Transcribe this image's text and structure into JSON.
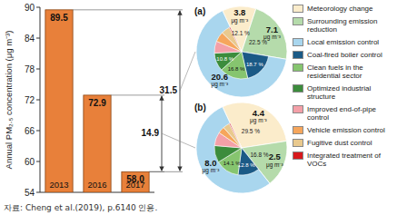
{
  "chart_data": [
    {
      "type": "bar",
      "categories": [
        "2013",
        "2016",
        "2017"
      ],
      "values": [
        89.5,
        72.9,
        58.0
      ],
      "value_labels": [
        "89.5",
        "72.9",
        "58.0"
      ],
      "color": "#e8803a",
      "ylim": [
        54,
        90
      ],
      "yticks": [
        54,
        60,
        66,
        72,
        78,
        84,
        90
      ],
      "y_label": "Annual PM₂.₅ concentration (μg m⁻³)",
      "data_labels": true,
      "annotations": [
        {
          "text": "31.5",
          "from": "2013",
          "to": "2017"
        },
        {
          "text": "14.9",
          "from": "2016",
          "to": "2017"
        }
      ]
    },
    {
      "type": "pie",
      "title": "(a)",
      "values": [
        3.8,
        7.1,
        20.6
      ],
      "value_labels": [
        "3.8 μg m⁻³",
        "7.1 μg m⁻³",
        "20.6 μg m⁻³"
      ],
      "shares": [
        12.1,
        22.5,
        null
      ],
      "share_labels": [
        "12.1 %",
        "22.5 %",
        null
      ],
      "sub_values": [
        18.7,
        16.8,
        10.8,
        7.1,
        6.0,
        5.1,
        0.6
      ],
      "sub_value_labels": [
        "18.7 %",
        "16.8 %",
        "10.8 %",
        null,
        null,
        null,
        null
      ],
      "data_labels": true
    },
    {
      "type": "pie",
      "title": "(b)",
      "values": [
        4.4,
        2.5,
        8.0
      ],
      "value_labels": [
        "4.4 μg m⁻³",
        "2.5 μg m⁻³",
        "8.0 μg m⁻³"
      ],
      "shares": [
        29.5,
        16.8,
        null
      ],
      "share_labels": [
        "29.5 %",
        "16.8 %",
        null
      ],
      "sub_values": [
        12.8,
        14.1,
        10.1,
        8.1,
        4.0,
        4.0,
        0.6
      ],
      "sub_value_labels": [
        "12.8 %",
        "14.1 %",
        null,
        null,
        null,
        null,
        null
      ],
      "data_labels": true
    }
  ],
  "legend_entries": [
    {
      "name": "Meteorology change",
      "color": "#fbeccb"
    },
    {
      "name": "Surrounding emission reduction",
      "color": "#b5dbab"
    },
    {
      "name": "Local emission control",
      "color": "#a9d6ee"
    },
    {
      "name": "Coal-fired boiler control",
      "color": "#1b5a86"
    },
    {
      "name": "Clean fuels in the residential sector",
      "color": "#86c56f"
    },
    {
      "name": "Optimized industrial structure",
      "color": "#3c8c3c"
    },
    {
      "name": "Improved end-of-pipe control",
      "color": "#f4a0a8"
    },
    {
      "name": "Vehicle emission control",
      "color": "#f6a65c"
    },
    {
      "name": "Fugitive dust control",
      "color": "#e9c98e"
    },
    {
      "name": "Integrated treatment of VOCs",
      "color": "#d7191c"
    }
  ],
  "source": "자료: Cheng et al.(2019), p.6140 인용."
}
